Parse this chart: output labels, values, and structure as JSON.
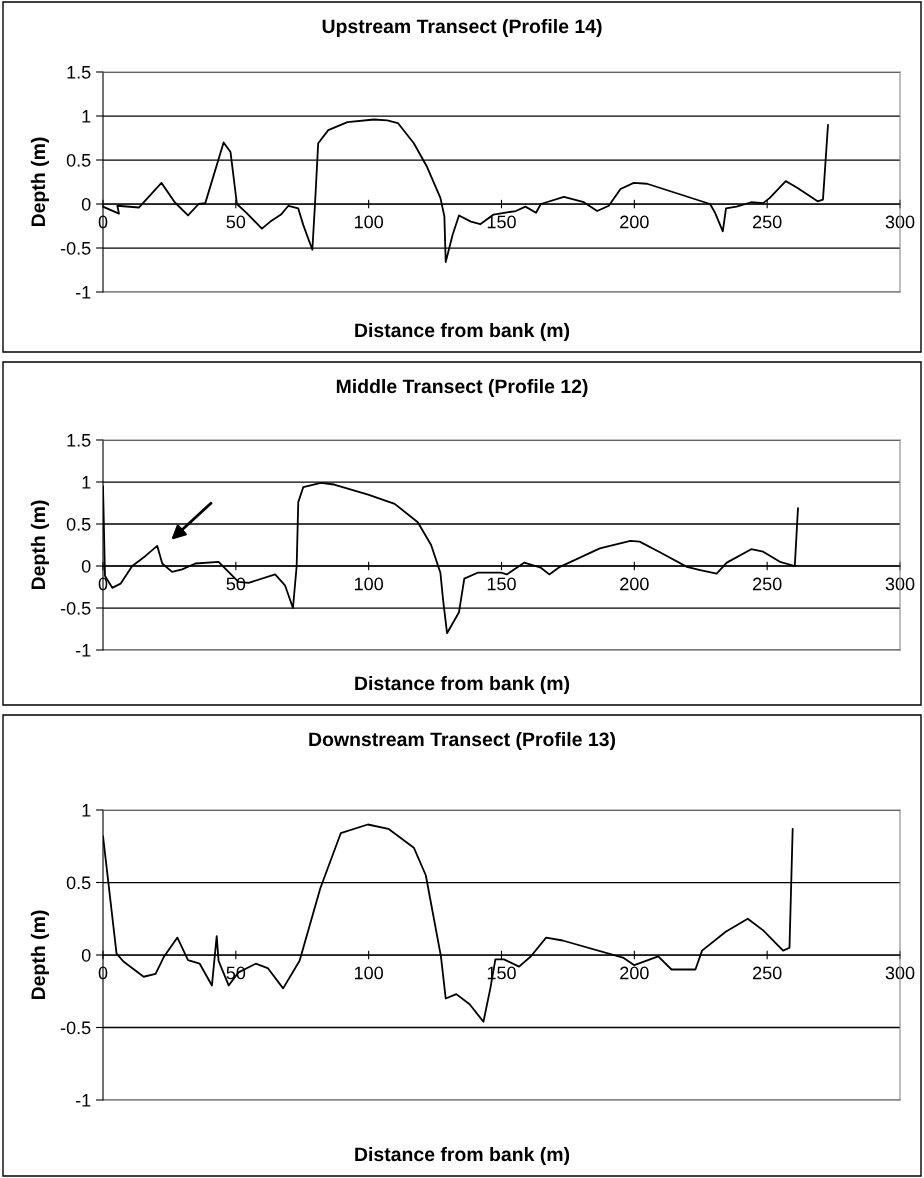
{
  "chart_data": [
    {
      "type": "line",
      "title": "Upstream Transect (Profile 14)",
      "xlabel": "Distance from bank (m)",
      "ylabel": "Depth (m)",
      "xlim": [
        0,
        300
      ],
      "ylim": [
        -1,
        1.5
      ],
      "xticks": [
        0,
        50,
        100,
        150,
        200,
        250,
        300
      ],
      "yticks": [
        -1,
        -0.5,
        0,
        0.5,
        1,
        1.5
      ],
      "grid": "y",
      "series": [
        {
          "color": "#000000",
          "x": [
            0,
            6,
            5.4,
            13.5,
            22,
            27,
            32,
            36,
            38.5,
            45.4,
            48,
            50.4,
            54,
            59.8,
            63,
            67,
            69.8,
            73.5,
            75.4,
            78.8,
            79.8,
            81,
            84.8,
            92,
            102,
            107,
            111,
            117,
            122,
            127,
            128.5,
            129,
            131.6,
            134,
            138.5,
            142,
            147,
            151,
            155.4,
            159,
            163,
            164.8,
            173.5,
            181,
            186,
            190.4,
            194.8,
            199.8,
            204.8,
            228.5,
            230.4,
            233.3,
            234.5,
            238.5,
            244,
            248.5,
            251,
            257,
            261,
            269,
            271,
            272.9
          ],
          "values": [
            -0.03,
            -0.11,
            -0.02,
            -0.04,
            0.24,
            0.02,
            -0.13,
            0,
            0.01,
            0.7,
            0.59,
            0,
            -0.1,
            -0.28,
            -0.2,
            -0.12,
            -0.02,
            -0.05,
            -0.24,
            -0.52,
            0,
            0.69,
            0.84,
            0.93,
            0.96,
            0.95,
            0.92,
            0.69,
            0.42,
            0.07,
            -0.14,
            -0.66,
            -0.35,
            -0.13,
            -0.2,
            -0.23,
            -0.12,
            -0.1,
            -0.08,
            -0.03,
            -0.1,
            0,
            0.08,
            0.02,
            -0.08,
            -0.02,
            0.17,
            0.24,
            0.23,
            0,
            -0.1,
            -0.31,
            -0.05,
            -0.03,
            0.02,
            0.01,
            0.07,
            0.26,
            0.19,
            0.03,
            0.05,
            0.9
          ]
        }
      ]
    },
    {
      "type": "line",
      "title": "Middle Transect (Profile 12)",
      "xlabel": "Distance from bank (m)",
      "ylabel": "Depth (m)",
      "xlim": [
        0,
        300
      ],
      "ylim": [
        -1,
        1.5
      ],
      "xticks": [
        0,
        50,
        100,
        150,
        200,
        250,
        300
      ],
      "yticks": [
        -1,
        -0.5,
        0,
        0.5,
        1,
        1.5
      ],
      "grid": "y",
      "series": [
        {
          "color": "#000000",
          "x": [
            0,
            0.75,
            3.5,
            6.6,
            11,
            16,
            20.4,
            22.3,
            26,
            29.8,
            34.8,
            43.5,
            51,
            54.8,
            64.8,
            68.5,
            71.5,
            72.9,
            73.5,
            75.4,
            82,
            87,
            99.8,
            109.8,
            118.5,
            123.5,
            127,
            128,
            129.5,
            134,
            136,
            141,
            149.8,
            152,
            158.5,
            164.8,
            168,
            172,
            187,
            198.5,
            202,
            209.8,
            219.8,
            224.8,
            231,
            234.8,
            244,
            248.5,
            254.8,
            260.4,
            261.6
          ],
          "values": [
            0.95,
            -0.12,
            -0.26,
            -0.21,
            0,
            0.12,
            0.24,
            0.03,
            -0.07,
            -0.04,
            0.03,
            0.05,
            -0.19,
            -0.2,
            -0.1,
            -0.23,
            -0.5,
            0,
            0.76,
            0.94,
            0.99,
            0.97,
            0.85,
            0.74,
            0.52,
            0.25,
            -0.08,
            -0.4,
            -0.8,
            -0.55,
            -0.15,
            -0.08,
            -0.08,
            -0.1,
            0.04,
            -0.02,
            -0.1,
            -0.01,
            0.21,
            0.3,
            0.29,
            0.16,
            -0.01,
            -0.05,
            -0.09,
            0.04,
            0.2,
            0.17,
            0.05,
            0,
            0.69
          ]
        }
      ]
    },
    {
      "type": "line",
      "title": "Downstream Transect (Profile 13)",
      "xlabel": "Distance from bank (m)",
      "ylabel": "Depth (m)",
      "xlim": [
        0,
        300
      ],
      "ylim": [
        -1,
        1
      ],
      "xticks": [
        0,
        50,
        100,
        150,
        200,
        250,
        300
      ],
      "yticks": [
        -1,
        -0.5,
        0,
        0.5,
        1
      ],
      "grid": "y",
      "series": [
        {
          "color": "#000000",
          "x": [
            0,
            5.1,
            7.7,
            15.3,
            19.8,
            23,
            28,
            32,
            36.4,
            41,
            42.8,
            43.5,
            47.3,
            51,
            57.5,
            62,
            67.8,
            74,
            81.8,
            89.5,
            99.7,
            107.4,
            117,
            121.5,
            127.2,
            129,
            133,
            138,
            143.2,
            145.8,
            147.7,
            150.9,
            156.6,
            161,
            166.8,
            173,
            196,
            200,
            209,
            214,
            223,
            225.5,
            234.4,
            242.7,
            248.5,
            256,
            258.4,
            259.6
          ],
          "values": [
            0.82,
            0.01,
            -0.045,
            -0.15,
            -0.13,
            -0.01,
            0.12,
            -0.035,
            -0.06,
            -0.21,
            0.13,
            -0.04,
            -0.21,
            -0.12,
            -0.06,
            -0.09,
            -0.23,
            -0.04,
            0.46,
            0.84,
            0.9,
            0.87,
            0.74,
            0.55,
            -0.01,
            -0.3,
            -0.27,
            -0.34,
            -0.46,
            -0.23,
            -0.03,
            -0.03,
            -0.08,
            -0.01,
            0.12,
            0.1,
            -0.02,
            -0.07,
            -0.01,
            -0.1,
            -0.1,
            0.03,
            0.16,
            0.25,
            0.17,
            0.03,
            0.05,
            0.87
          ]
        }
      ]
    }
  ]
}
